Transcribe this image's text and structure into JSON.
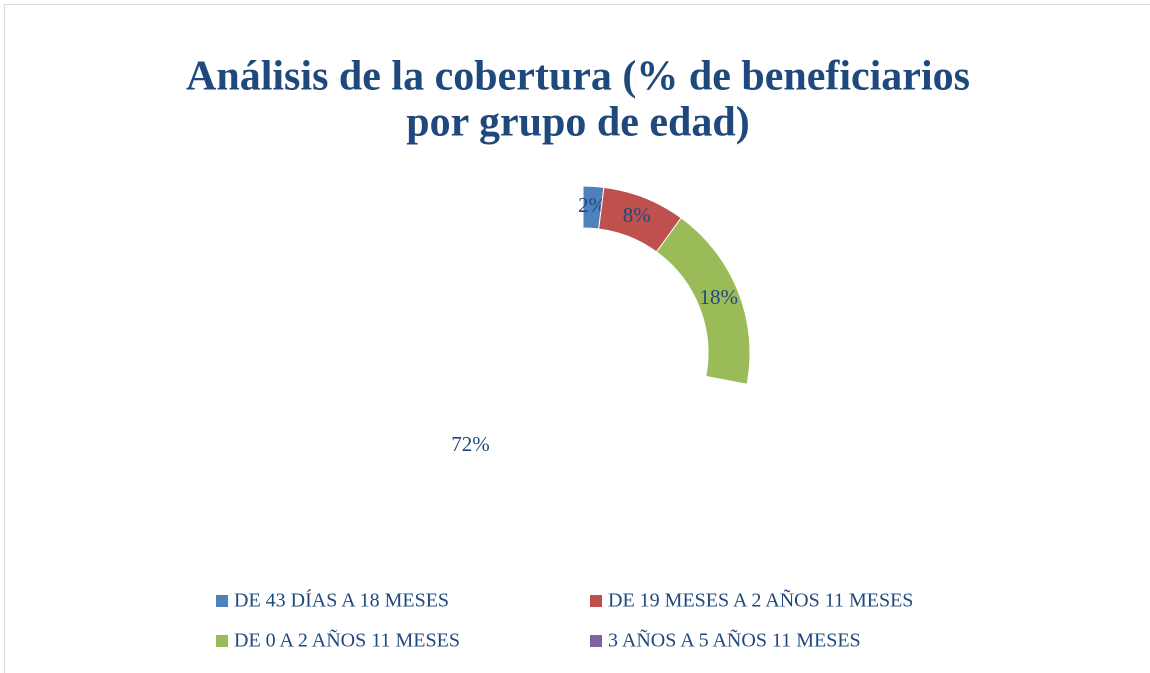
{
  "chart_data": {
    "type": "doughnut",
    "title": [
      "Análisis de la cobertura (% de beneficiarios",
      "por grupo de edad)"
    ],
    "categories": [
      "DE 43 DÍAS A 18 MESES",
      "DE 19 MESES A 2 AÑOS 11 MESES",
      "DE 0 A 2 AÑOS 11 MESES",
      "3 AÑOS A 5 AÑOS 11 MESES"
    ],
    "values": [
      2,
      8,
      18,
      72
    ],
    "value_labels": [
      "2%",
      "8%",
      "18%",
      "72%"
    ],
    "colors": [
      "#4f81bd",
      "#c0504d",
      "#9bbb59",
      "#8064a2"
    ],
    "slice_fills": [
      "#4f81bd",
      "#c0504d",
      "#9bbb59",
      "none"
    ]
  }
}
